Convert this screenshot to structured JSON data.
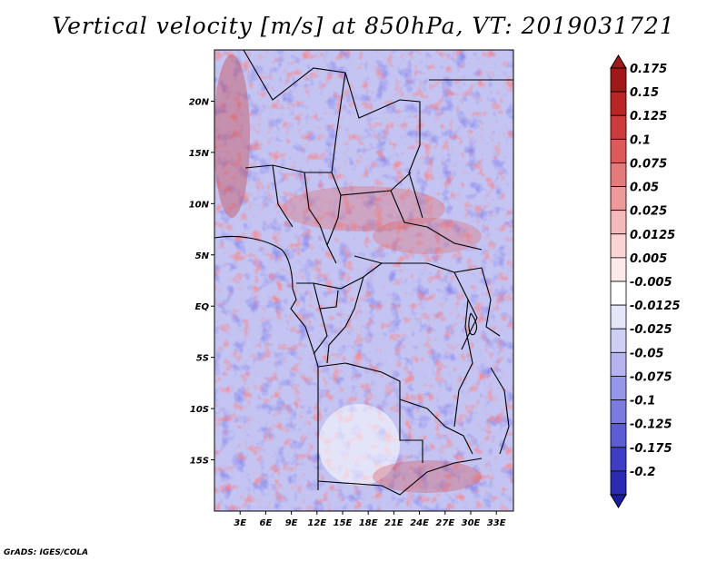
{
  "title": "Vertical velocity [m/s] at 850hPa, VT: 2019031721",
  "credit": "GrADS: IGES/COLA",
  "map": {
    "lon_range": [
      0,
      35
    ],
    "lat_range": [
      -20,
      25
    ],
    "lon_ticks": [
      {
        "value": 3,
        "label": "3E"
      },
      {
        "value": 6,
        "label": "6E"
      },
      {
        "value": 9,
        "label": "9E"
      },
      {
        "value": 12,
        "label": "12E"
      },
      {
        "value": 15,
        "label": "15E"
      },
      {
        "value": 18,
        "label": "18E"
      },
      {
        "value": 21,
        "label": "21E"
      },
      {
        "value": 24,
        "label": "24E"
      },
      {
        "value": 27,
        "label": "27E"
      },
      {
        "value": 30,
        "label": "30E"
      },
      {
        "value": 33,
        "label": "33E"
      }
    ],
    "lat_ticks": [
      {
        "value": 20,
        "label": "20N"
      },
      {
        "value": 15,
        "label": "15N"
      },
      {
        "value": 10,
        "label": "10N"
      },
      {
        "value": 5,
        "label": "5N"
      },
      {
        "value": 0,
        "label": "EQ"
      },
      {
        "value": -5,
        "label": "5S"
      },
      {
        "value": -10,
        "label": "10S"
      },
      {
        "value": -15,
        "label": "15S"
      }
    ]
  },
  "colorbar": {
    "levels": [
      {
        "label": "0.175",
        "color": "#a01818"
      },
      {
        "label": "0.15",
        "color": "#b82626"
      },
      {
        "label": "0.125",
        "color": "#cc3c3c"
      },
      {
        "label": "0.1",
        "color": "#dc5a5a"
      },
      {
        "label": "0.075",
        "color": "#e57a7a"
      },
      {
        "label": "0.05",
        "color": "#ee9a9a"
      },
      {
        "label": "0.025",
        "color": "#f5b9b9"
      },
      {
        "label": "0.0125",
        "color": "#fad4d4"
      },
      {
        "label": "0.005",
        "color": "#fde9e9"
      },
      {
        "label": "-0.005",
        "color": "#ffffff"
      },
      {
        "label": "-0.0125",
        "color": "#e6e6fa"
      },
      {
        "label": "-0.025",
        "color": "#cfcff6"
      },
      {
        "label": "-0.05",
        "color": "#b3b3f0"
      },
      {
        "label": "-0.075",
        "color": "#9797ea"
      },
      {
        "label": "-0.1",
        "color": "#7a7ae0"
      },
      {
        "label": "-0.125",
        "color": "#5c5cd4"
      },
      {
        "label": "-0.175",
        "color": "#3e3ec4"
      },
      {
        "label": "-0.2",
        "color": "#2a2ab2"
      }
    ],
    "top_color": "#a01818",
    "bottom_color": "#1c1ca0"
  }
}
